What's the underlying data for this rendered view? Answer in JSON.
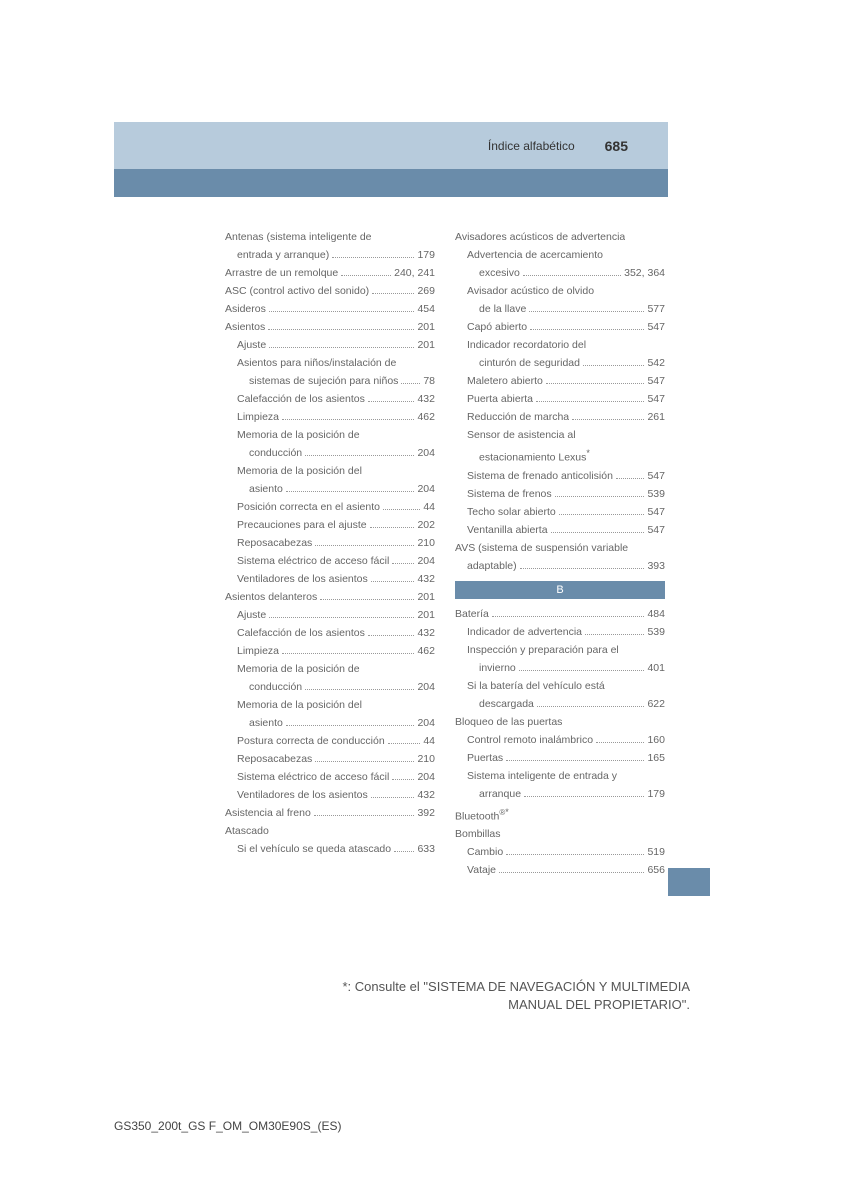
{
  "header": {
    "section_title": "Índice alfabético",
    "page_number": "685",
    "band_bg": "#b7cbdc",
    "lower_band_bg": "#6a8caa"
  },
  "left_col": [
    {
      "t": "Antenas (sistema inteligente de",
      "lvl": 0,
      "np": true
    },
    {
      "t": "entrada y arranque)",
      "p": "179",
      "lvl": 1
    },
    {
      "t": "Arrastre de un remolque",
      "p": "240, 241",
      "lvl": 0
    },
    {
      "t": "ASC (control activo del sonido)",
      "p": "269",
      "lvl": 0
    },
    {
      "t": "Asideros",
      "p": "454",
      "lvl": 0
    },
    {
      "t": "Asientos",
      "p": "201",
      "lvl": 0
    },
    {
      "t": "Ajuste",
      "p": "201",
      "lvl": 1
    },
    {
      "t": "Asientos para niños/instalación de",
      "lvl": 1,
      "np": true
    },
    {
      "t": "sistemas de sujeción para niños",
      "p": "78",
      "lvl": 2
    },
    {
      "t": "Calefacción de los asientos",
      "p": "432",
      "lvl": 1
    },
    {
      "t": "Limpieza",
      "p": "462",
      "lvl": 1
    },
    {
      "t": "Memoria de la posición de",
      "lvl": 1,
      "np": true
    },
    {
      "t": "conducción",
      "p": "204",
      "lvl": 2
    },
    {
      "t": "Memoria de la posición del",
      "lvl": 1,
      "np": true
    },
    {
      "t": "asiento",
      "p": "204",
      "lvl": 2
    },
    {
      "t": "Posición correcta en el asiento",
      "p": "44",
      "lvl": 1
    },
    {
      "t": "Precauciones para el ajuste",
      "p": "202",
      "lvl": 1
    },
    {
      "t": "Reposacabezas",
      "p": "210",
      "lvl": 1
    },
    {
      "t": "Sistema eléctrico de acceso fácil",
      "p": "204",
      "lvl": 1
    },
    {
      "t": "Ventiladores de los asientos",
      "p": "432",
      "lvl": 1
    },
    {
      "t": "Asientos delanteros",
      "p": "201",
      "lvl": 0
    },
    {
      "t": "Ajuste",
      "p": "201",
      "lvl": 1
    },
    {
      "t": "Calefacción de los asientos",
      "p": "432",
      "lvl": 1
    },
    {
      "t": "Limpieza",
      "p": "462",
      "lvl": 1
    },
    {
      "t": "Memoria de la posición de",
      "lvl": 1,
      "np": true
    },
    {
      "t": "conducción",
      "p": "204",
      "lvl": 2
    },
    {
      "t": "Memoria de la posición del",
      "lvl": 1,
      "np": true
    },
    {
      "t": "asiento",
      "p": "204",
      "lvl": 2
    },
    {
      "t": "Postura correcta de conducción",
      "p": "44",
      "lvl": 1
    },
    {
      "t": "Reposacabezas",
      "p": "210",
      "lvl": 1
    },
    {
      "t": "Sistema eléctrico de acceso fácil",
      "p": "204",
      "lvl": 1
    },
    {
      "t": "Ventiladores de los asientos",
      "p": "432",
      "lvl": 1
    },
    {
      "t": "Asistencia al freno",
      "p": "392",
      "lvl": 0
    },
    {
      "t": "Atascado",
      "lvl": 0,
      "np": true
    },
    {
      "t": "Si el vehículo se queda atascado",
      "p": "633",
      "lvl": 1
    }
  ],
  "right_col_a": [
    {
      "t": "Avisadores acústicos de advertencia",
      "lvl": 0,
      "np": true
    },
    {
      "t": "Advertencia de acercamiento",
      "lvl": 1,
      "np": true
    },
    {
      "t": "excesivo",
      "p": "352, 364",
      "lvl": 2
    },
    {
      "t": "Avisador acústico de olvido",
      "lvl": 1,
      "np": true
    },
    {
      "t": "de la llave",
      "p": "577",
      "lvl": 2
    },
    {
      "t": "Capó abierto",
      "p": "547",
      "lvl": 1
    },
    {
      "t": "Indicador recordatorio del",
      "lvl": 1,
      "np": true
    },
    {
      "t": "cinturón de seguridad",
      "p": "542",
      "lvl": 2
    },
    {
      "t": "Maletero abierto",
      "p": "547",
      "lvl": 1
    },
    {
      "t": "Puerta abierta",
      "p": "547",
      "lvl": 1
    },
    {
      "t": "Reducción de marcha",
      "p": "261",
      "lvl": 1
    },
    {
      "t": "Sensor de asistencia al",
      "lvl": 1,
      "np": true
    },
    {
      "t": "estacionamiento Lexus",
      "lvl": 2,
      "np": true,
      "ast": true
    },
    {
      "t": "Sistema de frenado anticolisión",
      "p": "547",
      "lvl": 1
    },
    {
      "t": "Sistema de frenos",
      "p": "539",
      "lvl": 1
    },
    {
      "t": "Techo solar abierto",
      "p": "547",
      "lvl": 1
    },
    {
      "t": "Ventanilla abierta",
      "p": "547",
      "lvl": 1
    },
    {
      "t": "AVS (sistema de suspensión variable",
      "lvl": 0,
      "np": true
    },
    {
      "t": "adaptable)",
      "p": "393",
      "lvl": 1
    }
  ],
  "right_section_letter": "B",
  "right_col_b": [
    {
      "t": "Batería",
      "p": "484",
      "lvl": 0
    },
    {
      "t": "Indicador de advertencia",
      "p": "539",
      "lvl": 1
    },
    {
      "t": "Inspección y preparación para el",
      "lvl": 1,
      "np": true
    },
    {
      "t": "invierno",
      "p": "401",
      "lvl": 2
    },
    {
      "t": "Si la batería del vehículo está",
      "lvl": 1,
      "np": true
    },
    {
      "t": "descargada",
      "p": "622",
      "lvl": 2
    },
    {
      "t": "Bloqueo de las puertas",
      "lvl": 0,
      "np": true
    },
    {
      "t": "Control remoto inalámbrico",
      "p": "160",
      "lvl": 1
    },
    {
      "t": "Puertas",
      "p": "165",
      "lvl": 1
    },
    {
      "t": "Sistema inteligente de entrada y",
      "lvl": 1,
      "np": true
    },
    {
      "t": "arranque",
      "p": "179",
      "lvl": 2
    },
    {
      "t": "Bluetooth",
      "lvl": 0,
      "np": true,
      "bt": true
    },
    {
      "t": "Bombillas",
      "lvl": 0,
      "np": true
    },
    {
      "t": "Cambio",
      "p": "519",
      "lvl": 1
    },
    {
      "t": "Vataje",
      "p": "656",
      "lvl": 1
    }
  ],
  "footnote": {
    "marker": "*",
    "text1": ": Consulte el \"SISTEMA DE NAVEGACIÓN Y MULTIMEDIA",
    "text2": "MANUAL DEL PROPIETARIO\"."
  },
  "doc_code": "GS350_200t_GS F_OM_OM30E90S_(ES)"
}
